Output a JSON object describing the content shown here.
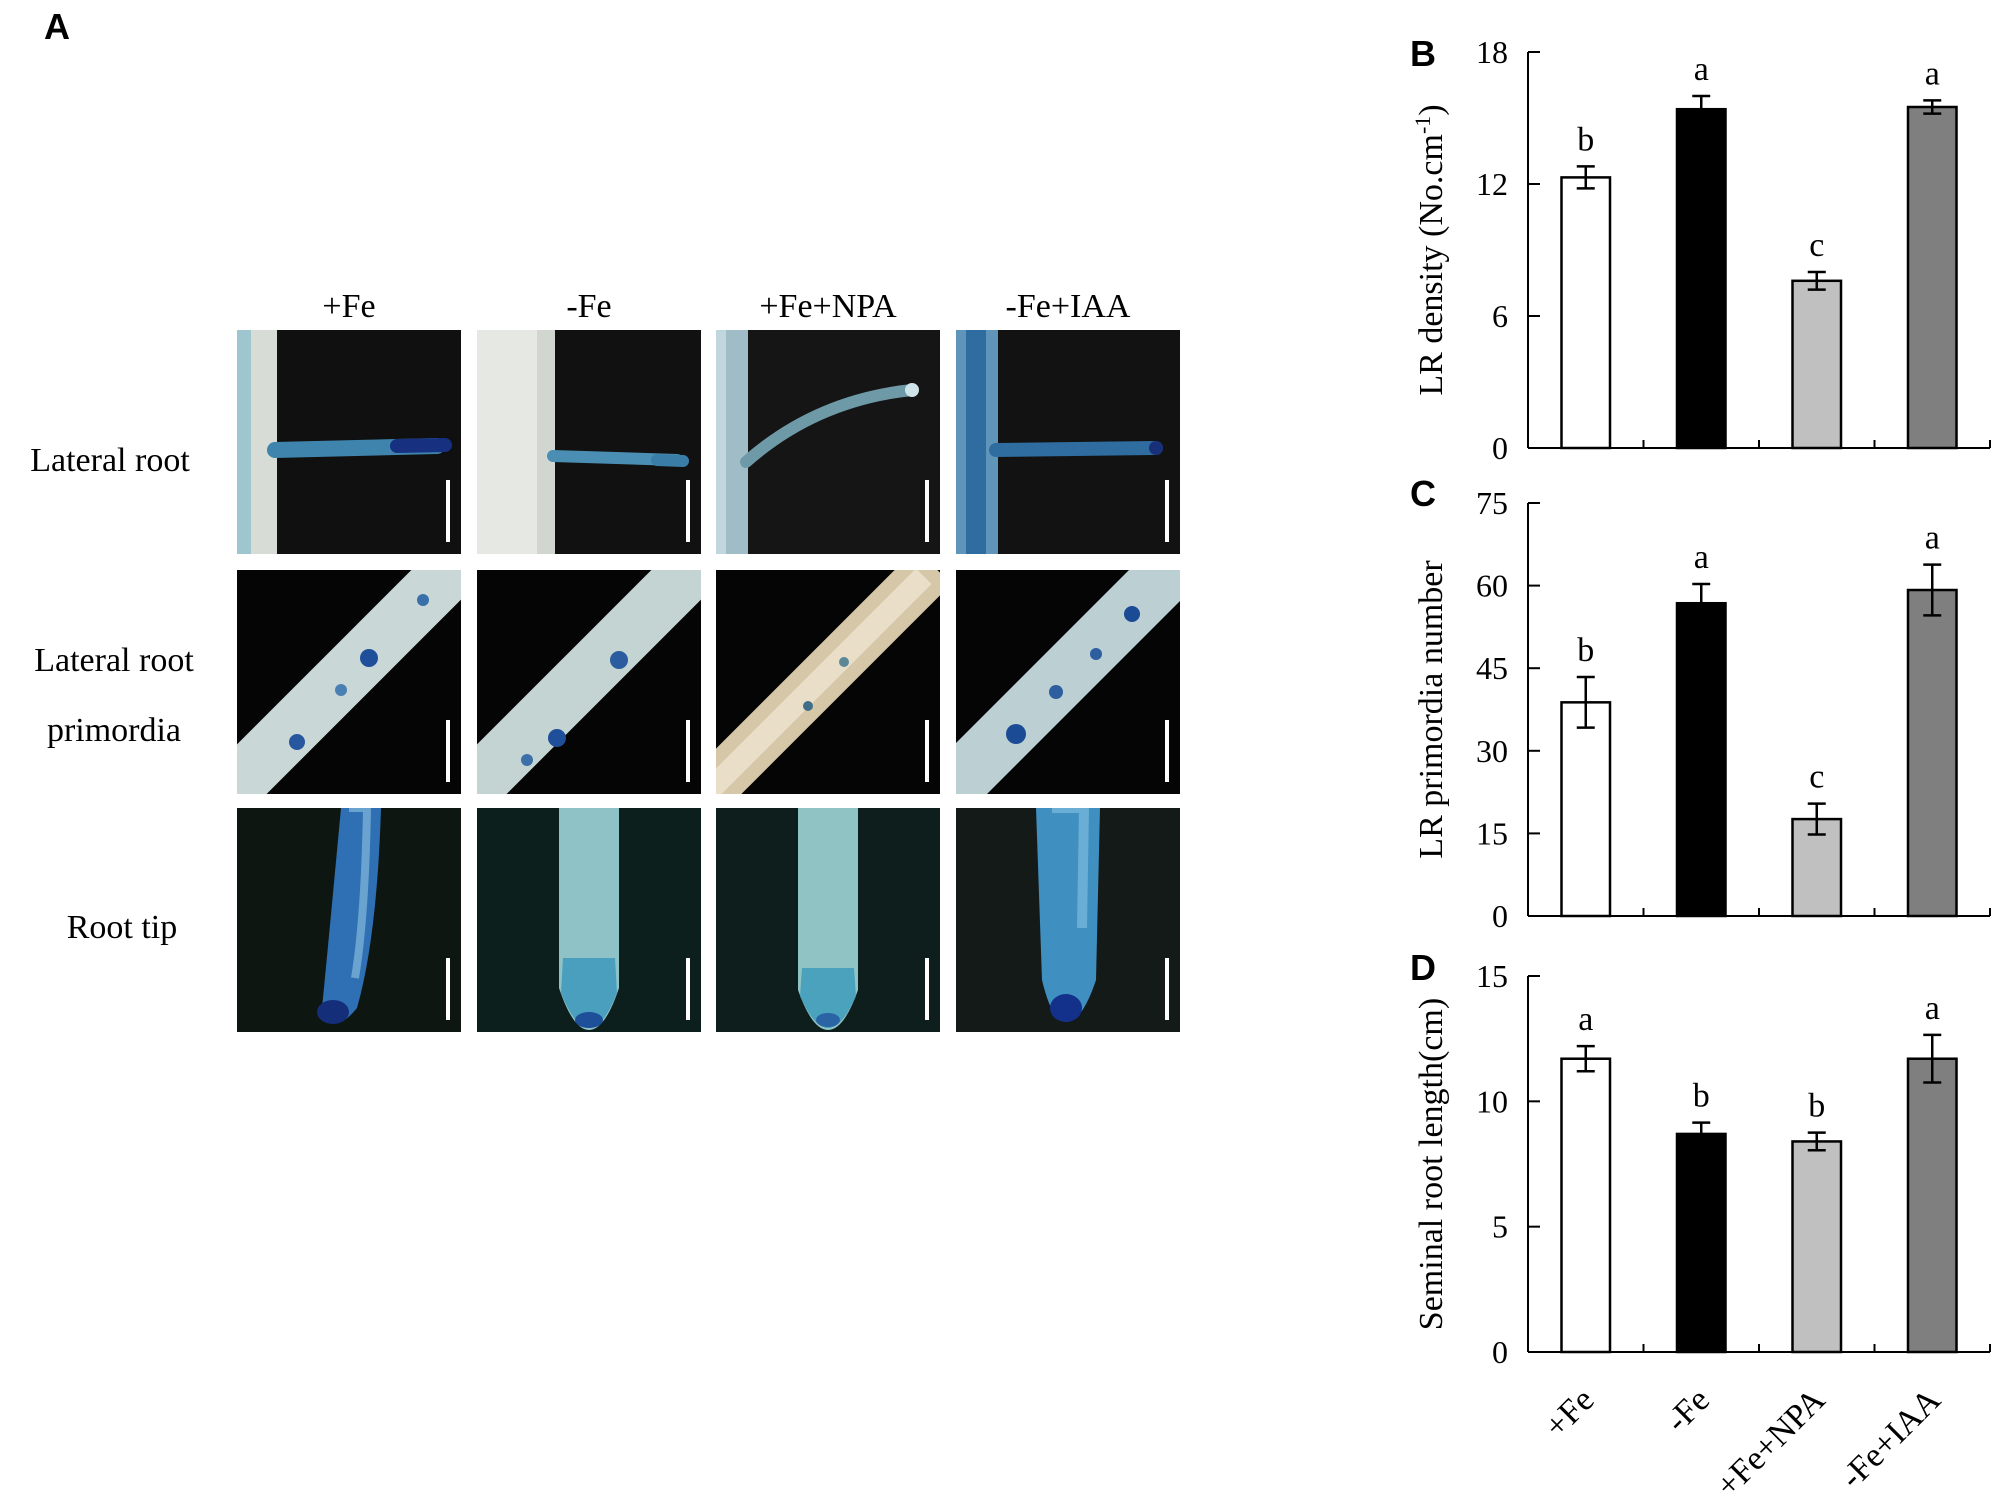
{
  "panel_a": {
    "letter": "A",
    "columns": [
      "+Fe",
      "-Fe",
      "+Fe+NPA",
      "-Fe+IAA"
    ],
    "rows": [
      {
        "lines": [
          "Lateral root"
        ]
      },
      {
        "lines": [
          "Lateral root",
          "primordia"
        ]
      },
      {
        "lines": [
          "Root tip"
        ]
      }
    ]
  },
  "chart_data": [
    {
      "type": "bar",
      "panel": "B",
      "categories": [
        "+Fe",
        "-Fe",
        "+Fe+NPA",
        "-Fe+IAA"
      ],
      "values": [
        12.3,
        15.4,
        7.6,
        15.5
      ],
      "errors": [
        0.5,
        0.6,
        0.4,
        0.3
      ],
      "letters": [
        "b",
        "a",
        "c",
        "a"
      ],
      "colors": [
        "#ffffff",
        "#000000",
        "#c0c0c0",
        "#7f7f7f"
      ],
      "ylabel": "LR density (No.cm",
      "ylabel_sup": "-1",
      "ylabel_end": ")",
      "ylim": [
        0,
        18
      ],
      "yticks": [
        0,
        6,
        12,
        18
      ],
      "grid": false
    },
    {
      "type": "bar",
      "panel": "C",
      "categories": [
        "+Fe",
        "-Fe",
        "+Fe+NPA",
        "-Fe+IAA"
      ],
      "values": [
        38.8,
        56.8,
        17.6,
        59.2
      ],
      "errors": [
        4.6,
        3.5,
        2.8,
        4.6
      ],
      "letters": [
        "b",
        "a",
        "c",
        "a"
      ],
      "colors": [
        "#ffffff",
        "#000000",
        "#c0c0c0",
        "#7f7f7f"
      ],
      "ylabel": "LR primordia number",
      "ylim": [
        0,
        75
      ],
      "yticks": [
        0,
        15,
        30,
        45,
        60,
        75
      ],
      "grid": false
    },
    {
      "type": "bar",
      "panel": "D",
      "categories": [
        "+Fe",
        "-Fe",
        "+Fe+NPA",
        "-Fe+IAA"
      ],
      "values": [
        11.7,
        8.7,
        8.4,
        11.7
      ],
      "errors": [
        0.5,
        0.45,
        0.35,
        0.95
      ],
      "letters": [
        "a",
        "b",
        "b",
        "a"
      ],
      "colors": [
        "#ffffff",
        "#000000",
        "#c0c0c0",
        "#7f7f7f"
      ],
      "ylabel": "Seminal root length(cm)",
      "ylim": [
        0,
        15
      ],
      "yticks": [
        0,
        5,
        10,
        15
      ],
      "grid": false,
      "show_xtick_labels": true
    }
  ]
}
